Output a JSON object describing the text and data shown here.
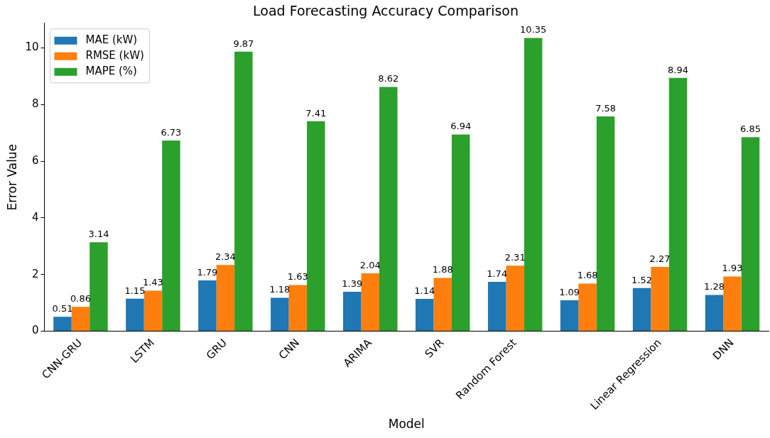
{
  "chart_data": {
    "type": "bar",
    "title": "Load Forecasting Accuracy Comparison",
    "xlabel": "Model",
    "ylabel": "Error Value",
    "categories": [
      "CNN-GRU",
      "LSTM",
      "GRU",
      "CNN",
      "ARIMA",
      "SVR",
      "Random Forest",
      null,
      "Linear Regression",
      "DNN"
    ],
    "series": [
      {
        "name": "MAE (kW)",
        "color": "#1f77b4",
        "values": [
          0.51,
          1.15,
          1.79,
          1.18,
          1.39,
          1.14,
          1.74,
          1.09,
          1.52,
          1.28
        ]
      },
      {
        "name": "RMSE (kW)",
        "color": "#ff7f0e",
        "values": [
          0.86,
          1.43,
          2.34,
          1.63,
          2.04,
          1.88,
          2.31,
          1.68,
          2.27,
          1.93
        ]
      },
      {
        "name": "MAPE (%)",
        "color": "#2ca02c",
        "values": [
          3.14,
          6.73,
          9.87,
          7.41,
          8.62,
          6.94,
          10.35,
          7.58,
          8.94,
          6.85
        ]
      }
    ],
    "ylim": [
      0,
      10.87
    ],
    "yticks": [
      0,
      2,
      4,
      6,
      8,
      10
    ],
    "grid": false,
    "legend": "top left",
    "data_labels": true
  }
}
